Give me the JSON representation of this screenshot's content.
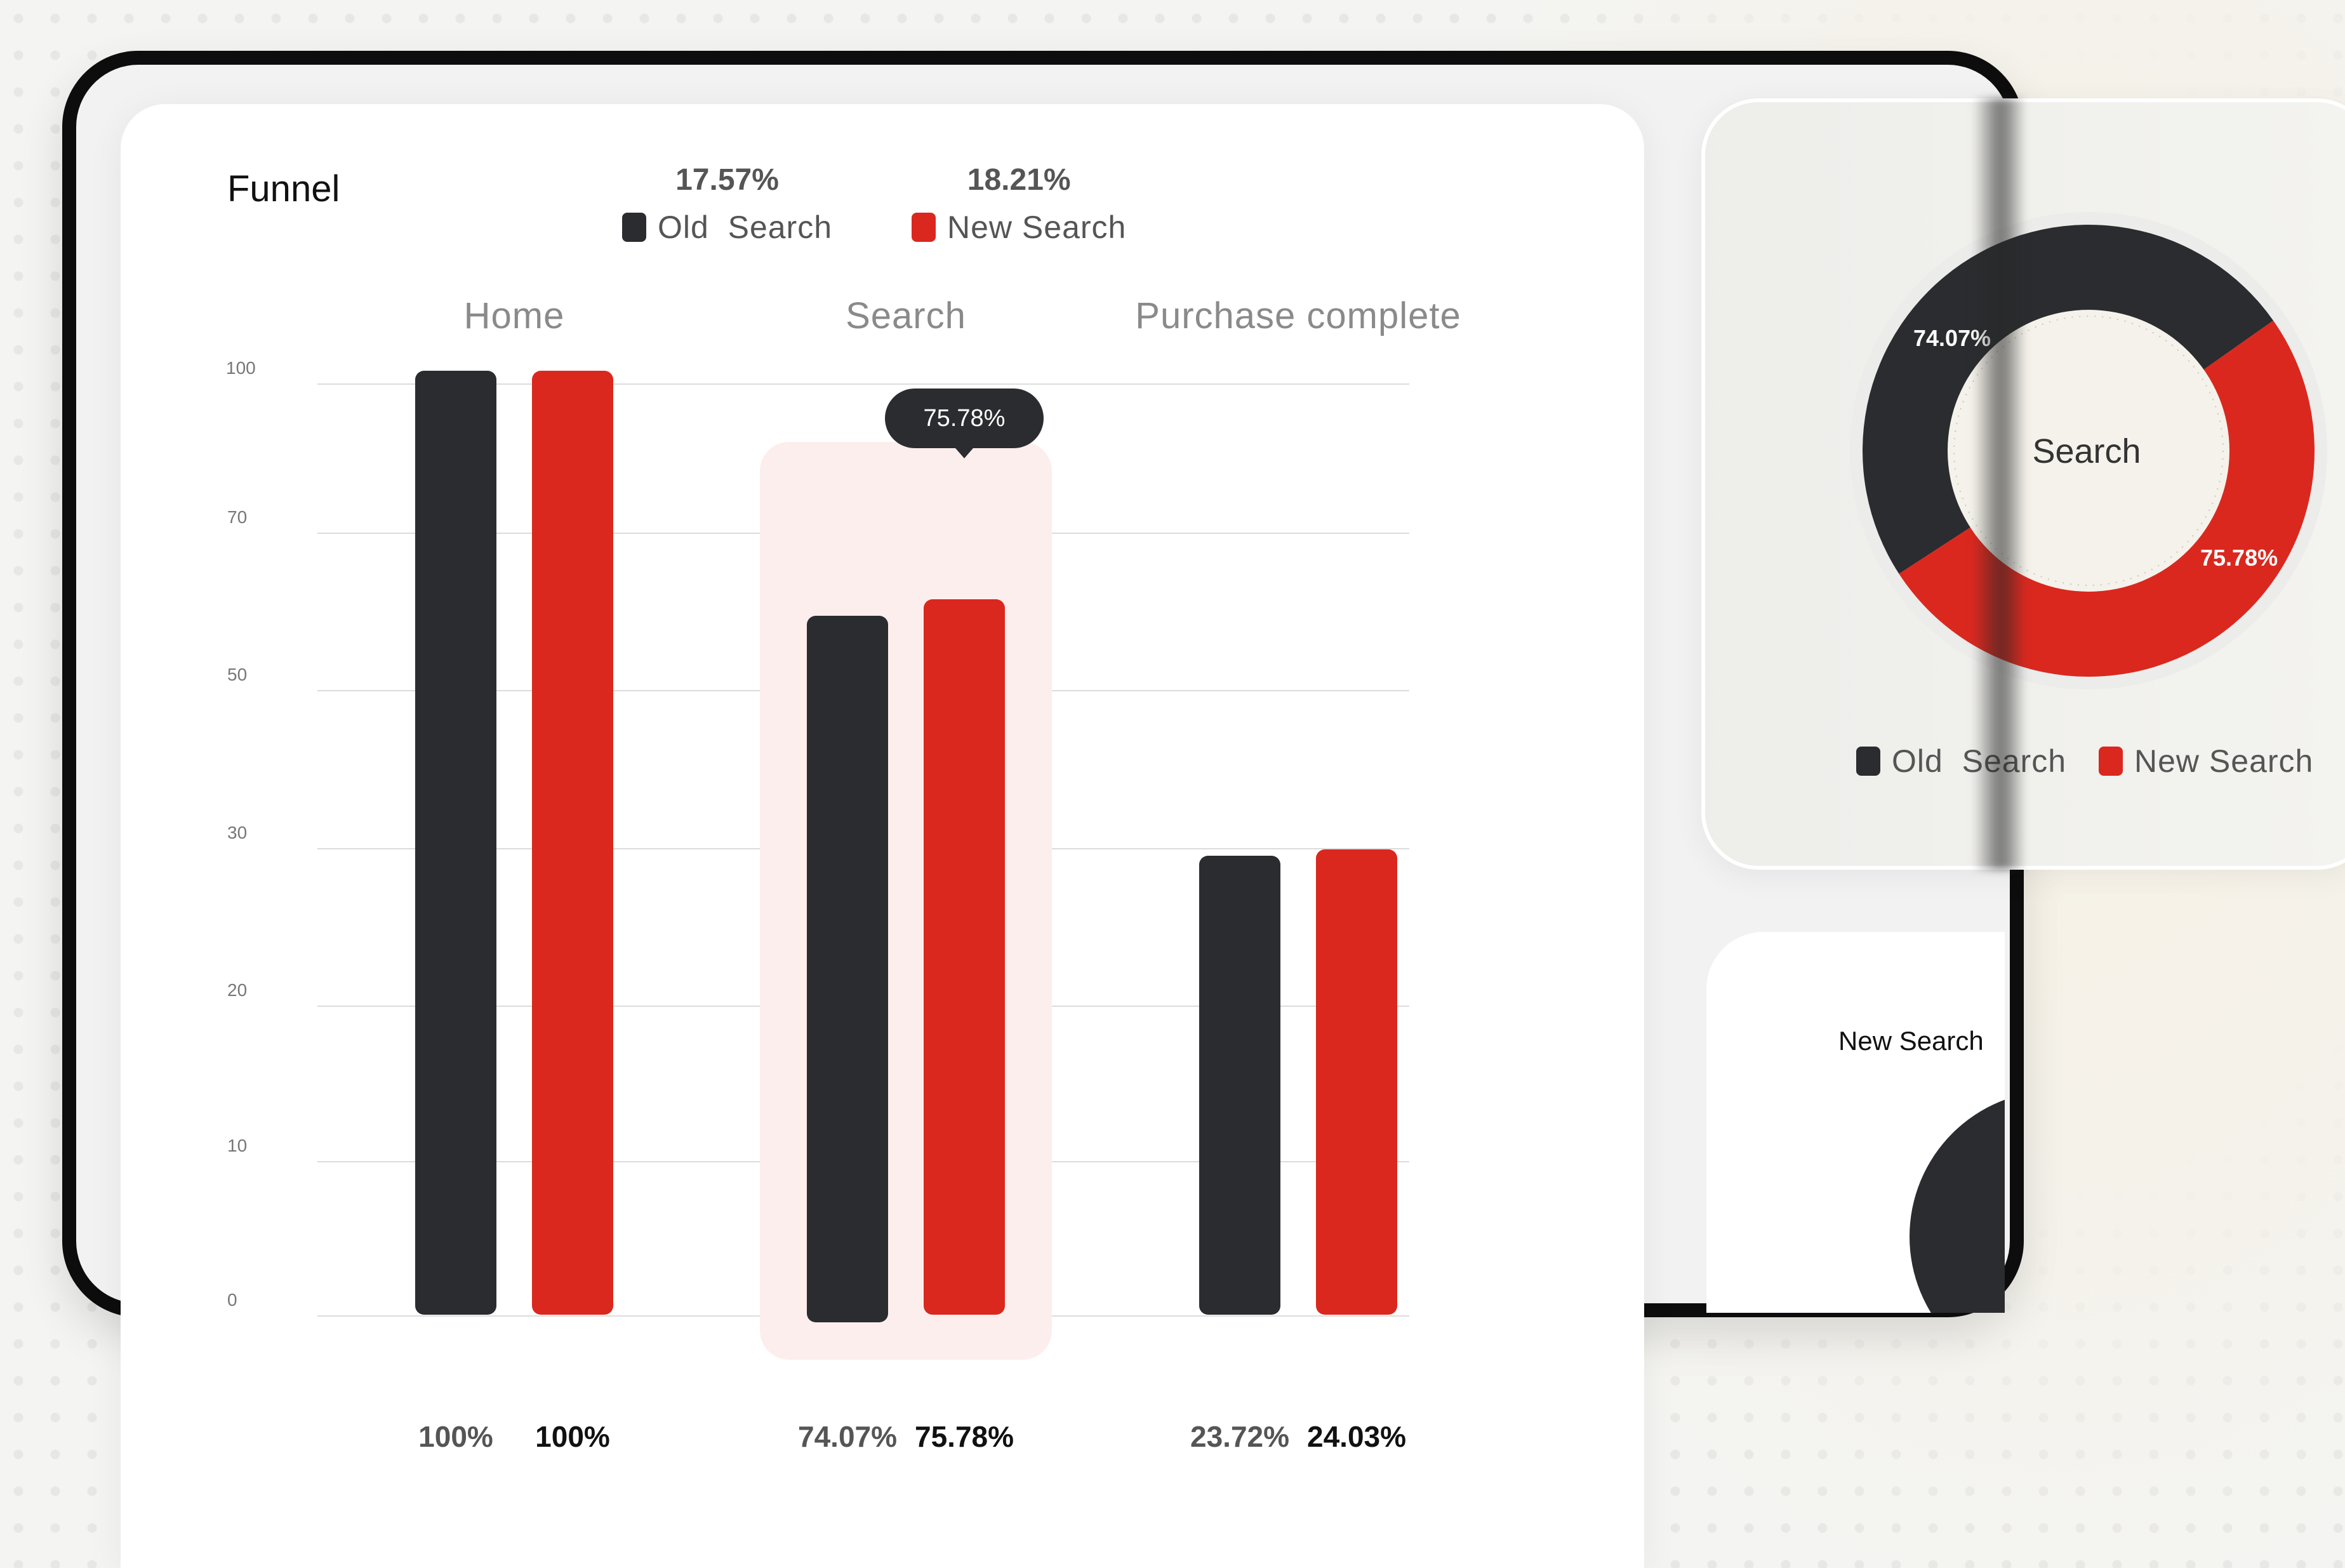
{
  "colors": {
    "old_search": "#2a2c2f",
    "new_search": "#da281f",
    "highlight": "#fdeeee"
  },
  "funnel": {
    "title": "Funnel",
    "legend": [
      {
        "label": "Old  Search",
        "pct": "17.57%"
      },
      {
        "label": "New Search",
        "pct": "18.21%"
      }
    ],
    "tooltip": "75.78%"
  },
  "chart_data": [
    {
      "type": "bar",
      "title": "Funnel",
      "categories": [
        "Home",
        "Search",
        "Purchase complete"
      ],
      "y_ticks": [
        "100",
        "70",
        "50",
        "30",
        "20",
        "10",
        "0"
      ],
      "series": [
        {
          "name": "Old  Search",
          "values": [
            100,
            74.07,
            23.72
          ],
          "labels": [
            "100%",
            "74.07%",
            "23.72%"
          ]
        },
        {
          "name": "New Search",
          "values": [
            100,
            75.78,
            24.03
          ],
          "labels": [
            "100%",
            "75.78%",
            "24.03%"
          ]
        }
      ],
      "highlighted_category": "Search",
      "legend_position": "top",
      "grid": true
    },
    {
      "type": "pie",
      "center_label": "Search",
      "slices": [
        {
          "name": "Old  Search",
          "label": "74.07%",
          "value": 49.4
        },
        {
          "name": "New Search",
          "label": "75.78%",
          "value": 50.6
        }
      ],
      "legend_position": "bottom"
    }
  ],
  "donut": {
    "center": "Search",
    "old_label": "74.07%",
    "new_label": "75.78%",
    "legend_old": "Old  Search",
    "legend_new": "New Search"
  },
  "lower_card": {
    "title": "New Search"
  }
}
